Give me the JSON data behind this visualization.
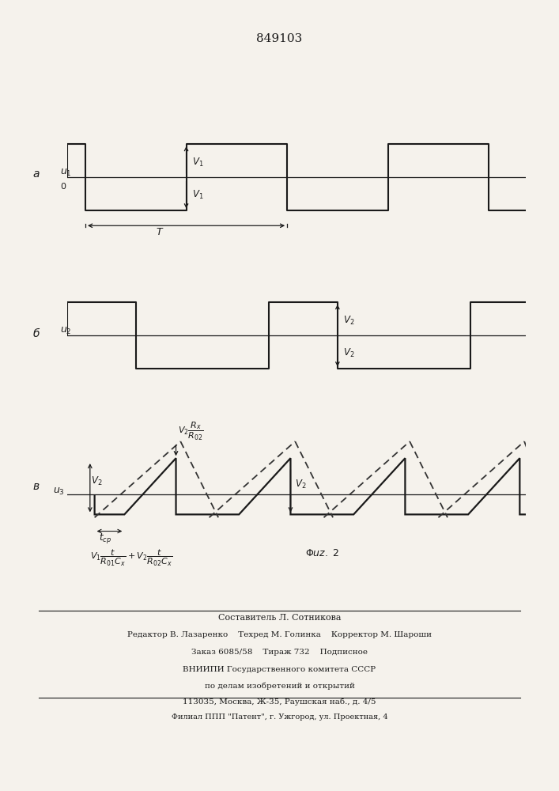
{
  "title": "849103",
  "bg_color": "#f5f2ec",
  "line_color": "#1a1a1a",
  "dash_color": "#333333",
  "panel_a_label": "a",
  "panel_b_label": "б",
  "panel_c_label": "в",
  "footer_lines": [
    "Составитель Л. Сотникова",
    "Редактор В. Лазаренко    Техред М. Голинка    Корректор М. Шароши",
    "Заказ 6085/58    Тираж 732    Подписное",
    "ВНИИПИ Государственного комитета СССР",
    "по делам изобретений и открытий",
    "113035, Москва, Ж-35, Раушская наб., д. 4/5",
    "Филиал ППП \"Патент\", г. Ужгород, ул. Проектная, 4"
  ]
}
